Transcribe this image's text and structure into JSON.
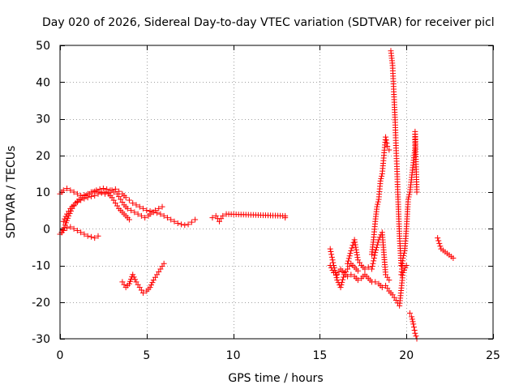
{
  "chart_data": {
    "type": "scatter",
    "title": "Day 020 of 2026, Sidereal Day-to-day VTEC variation (SDTVAR) for receiver picl",
    "xlabel": "GPS time / hours",
    "ylabel": "SDTVAR / TECUs",
    "xlim": [
      0,
      25
    ],
    "ylim": [
      -30,
      50
    ],
    "xticks": [
      0,
      5,
      10,
      15,
      20,
      25
    ],
    "yticks": [
      -30,
      -20,
      -10,
      0,
      10,
      20,
      30,
      40,
      50
    ],
    "grid": true,
    "marker": "plus",
    "marker_color": "#ff0000",
    "series": [
      {
        "name": "SDTVAR",
        "segments": [
          {
            "x": [
              0.0,
              0.2,
              0.4,
              0.6,
              0.8,
              1.0,
              1.2,
              1.4,
              1.6,
              1.8,
              2.0,
              2.2,
              2.4,
              2.6,
              2.8,
              3.0,
              3.2,
              3.4,
              3.6,
              3.8,
              4.0,
              4.2,
              4.4,
              4.6,
              4.8,
              5.0,
              5.2,
              5.4,
              5.6,
              5.8,
              6.0,
              6.2,
              6.4,
              6.6,
              6.8,
              7.0,
              7.2,
              7.4,
              7.6,
              7.8
            ],
            "y": [
              9.5,
              10.5,
              11.0,
              10.5,
              10.0,
              9.5,
              9.0,
              9.2,
              9.5,
              10.0,
              10.2,
              10.0,
              9.8,
              9.5,
              9.8,
              10.5,
              10.8,
              10.2,
              9.5,
              8.5,
              7.8,
              7.0,
              6.5,
              6.0,
              5.5,
              5.0,
              4.8,
              4.5,
              4.3,
              4.0,
              3.5,
              3.0,
              2.5,
              2.0,
              1.5,
              1.2,
              1.0,
              1.2,
              1.8,
              2.5
            ]
          },
          {
            "x": [
              0.1,
              0.3,
              0.5,
              0.7,
              0.9,
              1.1,
              1.3,
              1.5,
              1.7,
              1.9,
              2.1,
              2.3,
              2.5,
              2.7,
              2.9,
              3.1,
              3.3,
              3.5,
              3.7,
              3.9,
              4.1,
              4.3,
              4.5,
              4.7,
              4.9,
              5.1,
              5.3,
              5.5,
              5.7,
              5.9
            ],
            "y": [
              -1.0,
              1.0,
              3.5,
              5.5,
              7.0,
              8.0,
              8.5,
              9.0,
              9.5,
              10.0,
              10.5,
              10.8,
              11.0,
              10.8,
              10.5,
              10.0,
              9.5,
              8.0,
              6.5,
              5.5,
              5.0,
              4.5,
              4.0,
              3.5,
              3.0,
              3.5,
              4.5,
              5.0,
              5.5,
              6.0
            ]
          },
          {
            "x": [
              0.2,
              0.4,
              0.6,
              0.8,
              1.0,
              1.2,
              1.4,
              1.6,
              1.8,
              2.0,
              2.2,
              2.4,
              2.6,
              2.8,
              3.0,
              3.2,
              3.4,
              3.6,
              3.8,
              4.0
            ],
            "y": [
              2.0,
              4.0,
              5.5,
              6.5,
              7.2,
              7.8,
              8.2,
              8.5,
              8.8,
              9.0,
              9.5,
              9.8,
              10.0,
              9.5,
              8.5,
              7.0,
              5.5,
              4.5,
              3.5,
              2.5
            ]
          },
          {
            "x": [
              0.0,
              0.2,
              0.4,
              0.6,
              0.8,
              1.0,
              1.2,
              1.4,
              1.6,
              1.8,
              2.0,
              2.2
            ],
            "y": [
              -1.5,
              -0.5,
              0.2,
              0.5,
              0.0,
              -0.5,
              -1.0,
              -1.5,
              -2.0,
              -2.2,
              -2.5,
              -2.0
            ]
          },
          {
            "x": [
              3.6,
              3.8,
              4.0,
              4.2,
              4.4,
              4.6,
              4.8,
              5.0,
              5.2,
              5.4,
              5.6,
              5.8,
              6.0
            ],
            "y": [
              -14.5,
              -16.0,
              -15.0,
              -12.5,
              -14.5,
              -16.0,
              -17.5,
              -17.0,
              -16.0,
              -14.0,
              -12.5,
              -11.0,
              -9.5
            ]
          },
          {
            "x": [
              8.8,
              9.0,
              9.2,
              9.4,
              9.6,
              13.0,
              13.0
            ],
            "y": [
              3.0,
              3.5,
              2.0,
              3.5,
              4.0,
              3.5,
              3.0
            ]
          },
          {
            "x": [
              15.6,
              15.8,
              16.0,
              16.2,
              16.4,
              16.6,
              16.8,
              17.0,
              17.2,
              17.4,
              17.6,
              17.8,
              18.0,
              18.2,
              18.4,
              18.6,
              18.8,
              19.0,
              19.2,
              19.4,
              19.6,
              19.8,
              20.0
            ],
            "y": [
              -10.0,
              -12.0,
              -12.5,
              -11.0,
              -12.0,
              -13.0,
              -12.5,
              -13.0,
              -14.0,
              -13.5,
              -12.5,
              -13.5,
              -14.5,
              -14.5,
              -15.0,
              -16.0,
              -15.5,
              -17.0,
              -18.0,
              -19.5,
              -21.0,
              -12.0,
              -10.0
            ]
          },
          {
            "x": [
              15.6,
              15.8,
              16.0,
              16.2,
              16.4,
              16.6,
              16.8,
              17.0,
              17.2
            ],
            "y": [
              -5.5,
              -10.0,
              -14.0,
              -16.0,
              -12.5,
              -11.0,
              -9.5,
              -10.5,
              -11.5
            ]
          },
          {
            "x": [
              16.6,
              16.8,
              17.0,
              17.2,
              17.4,
              17.6,
              17.8,
              18.0,
              18.2,
              18.4,
              18.6,
              18.8,
              19.0
            ],
            "y": [
              -9.5,
              -6.0,
              -3.0,
              -8.5,
              -10.0,
              -11.0,
              -10.5,
              -11.0,
              -6.5,
              -3.0,
              -1.0,
              -12.5,
              -14.0
            ]
          },
          {
            "x": [
              18.0,
              18.1,
              18.2,
              18.3,
              18.4,
              18.5,
              18.6,
              18.7,
              18.8,
              18.9,
              19.0
            ],
            "y": [
              -7.0,
              -3.0,
              2.0,
              6.0,
              8.0,
              13.0,
              15.0,
              20.0,
              25.0,
              22.5,
              21.5
            ]
          },
          {
            "x": [
              19.1,
              19.15,
              19.2,
              19.25,
              19.3,
              19.35,
              19.4,
              19.45,
              19.5,
              19.55,
              19.6,
              19.7
            ],
            "y": [
              48.5,
              46.5,
              44.5,
              39.5,
              34.5,
              29.0,
              22.0,
              17.0,
              10.0,
              4.0,
              -2.0,
              -10.0
            ]
          },
          {
            "x": [
              19.7,
              19.8,
              19.9,
              20.0,
              20.1,
              20.2,
              20.3,
              20.4,
              20.5,
              20.5,
              20.6
            ],
            "y": [
              -12.5,
              -8.0,
              -6.0,
              0.0,
              8.0,
              10.0,
              14.0,
              18.0,
              22.0,
              26.5,
              10.0
            ]
          },
          {
            "x": [
              20.2,
              20.3,
              20.4,
              20.5,
              20.6
            ],
            "y": [
              -23.0,
              -24.0,
              -26.0,
              -28.5,
              -30.0
            ]
          },
          {
            "x": [
              21.8,
              21.9,
              22.0,
              22.7
            ],
            "y": [
              -2.5,
              -4.0,
              -5.5,
              -8.0
            ]
          }
        ]
      }
    ]
  }
}
